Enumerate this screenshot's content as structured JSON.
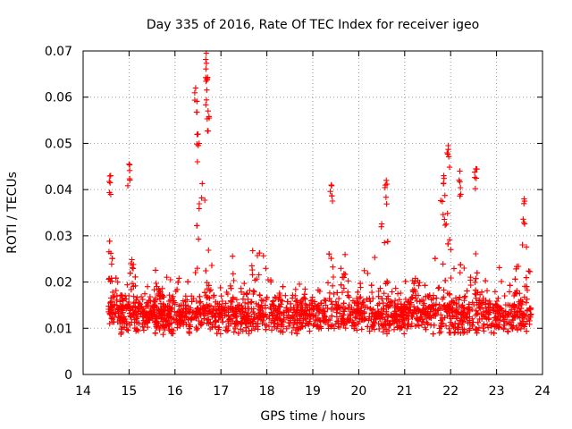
{
  "chart_data": {
    "type": "scatter",
    "title": "Day 335 of 2016, Rate Of TEC Index for receiver igeo",
    "xlabel": "GPS time / hours",
    "ylabel": "ROTI / TECUs",
    "xlim": [
      14,
      24
    ],
    "ylim": [
      0,
      0.07
    ],
    "xticks": [
      "14",
      "15",
      "16",
      "17",
      "18",
      "19",
      "20",
      "21",
      "22",
      "23",
      "24"
    ],
    "yticks": [
      "0",
      "0.01",
      "0.02",
      "0.03",
      "0.04",
      "0.05",
      "0.06",
      "0.07"
    ],
    "grid": true,
    "marker": "plus",
    "color": "#ff0000",
    "x_range_of_data": [
      14.55,
      23.75
    ],
    "typical_band": [
      0.005,
      0.02
    ],
    "peaks": [
      {
        "x": 14.6,
        "y": 0.043
      },
      {
        "x": 15.0,
        "y": 0.0455
      },
      {
        "x": 16.45,
        "y": 0.062
      },
      {
        "x": 16.5,
        "y": 0.052
      },
      {
        "x": 16.68,
        "y": 0.0695
      },
      {
        "x": 16.7,
        "y": 0.064
      },
      {
        "x": 16.72,
        "y": 0.057
      },
      {
        "x": 19.4,
        "y": 0.041
      },
      {
        "x": 20.6,
        "y": 0.042
      },
      {
        "x": 21.85,
        "y": 0.043
      },
      {
        "x": 21.95,
        "y": 0.0495
      },
      {
        "x": 22.2,
        "y": 0.044
      },
      {
        "x": 22.55,
        "y": 0.0445
      },
      {
        "x": 23.6,
        "y": 0.038
      }
    ]
  }
}
